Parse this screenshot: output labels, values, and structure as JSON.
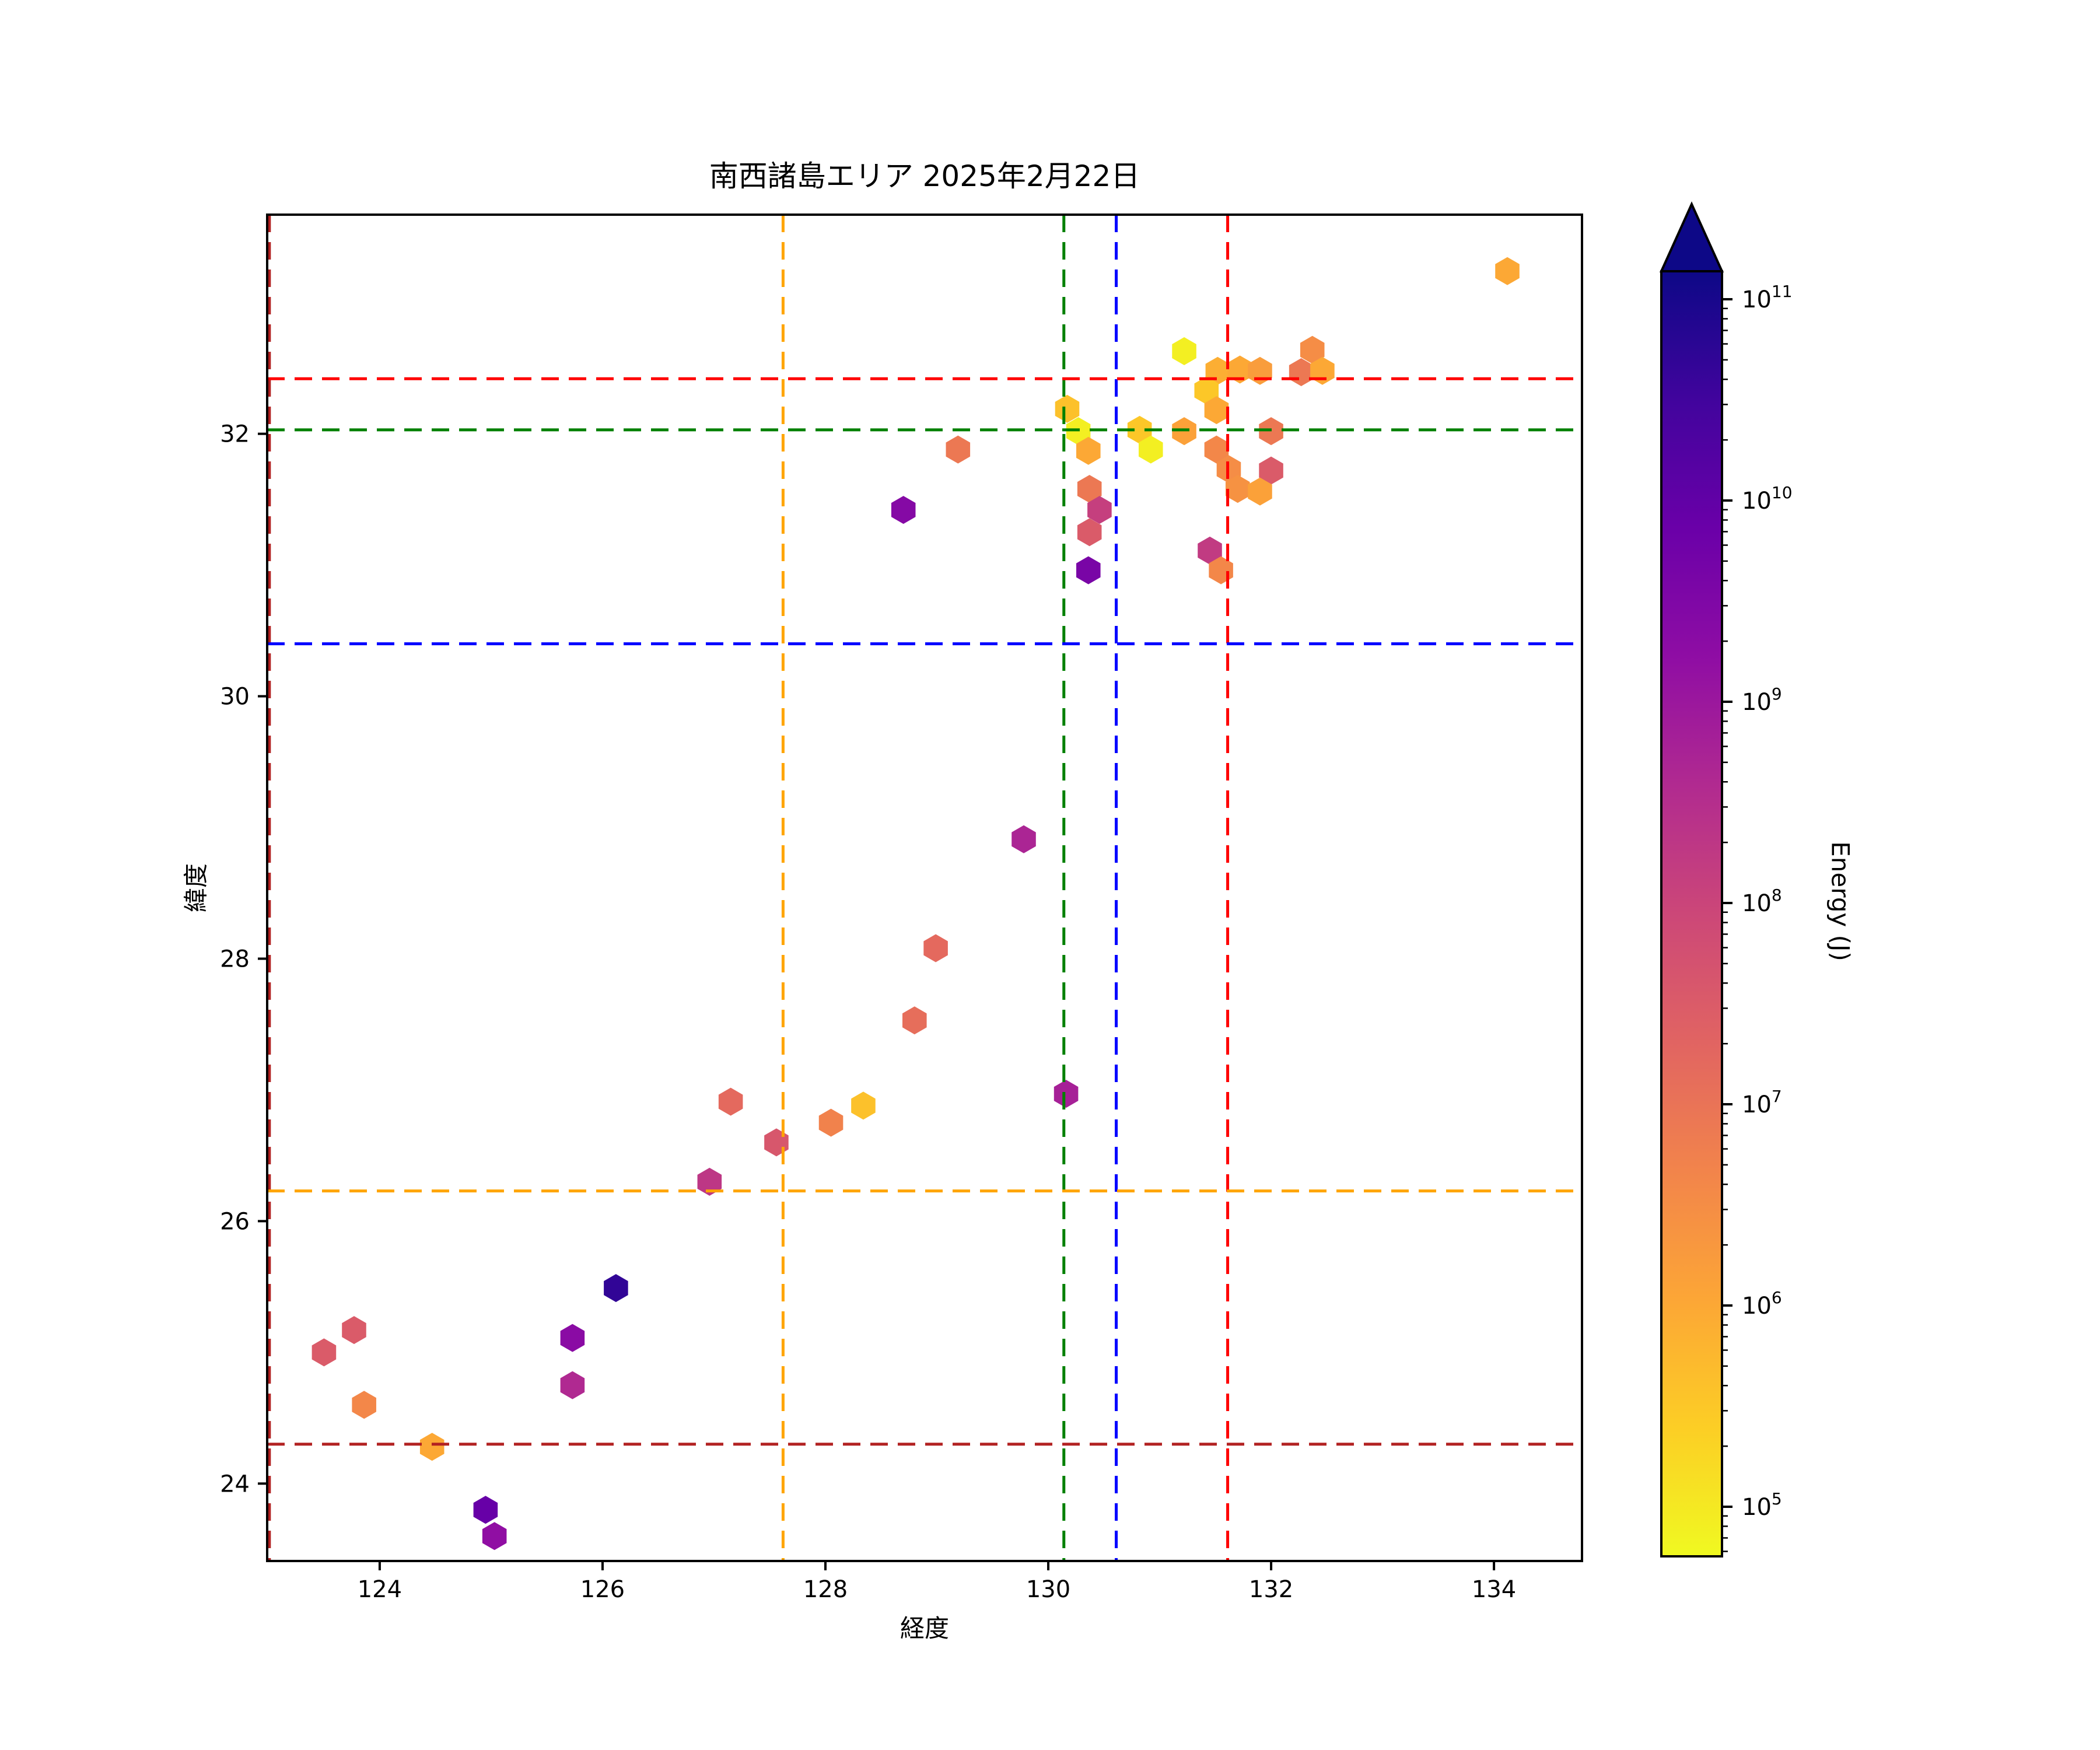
{
  "title": "南西諸島エリア 2025年2月22日",
  "axes": {
    "xlabel": "経度",
    "ylabel": "緯度",
    "xlim": [
      122.99,
      134.79
    ],
    "ylim": [
      23.41,
      33.67
    ],
    "xticks": [
      124,
      126,
      128,
      130,
      132,
      134
    ],
    "yticks": [
      24,
      26,
      28,
      30,
      32
    ]
  },
  "colorbar": {
    "label": "Energy (J)",
    "scale": "log",
    "colormap": "plasma_r",
    "extend": "max",
    "exp_min": 4.75,
    "exp_max": 11.14,
    "tick_exponents": [
      5,
      6,
      7,
      8,
      9,
      10,
      11
    ],
    "tick_mantissa_base": "10"
  },
  "reference_lines": {
    "vertical": [
      {
        "color": "#b22222",
        "lon": 123.01
      },
      {
        "color": "#ffa500",
        "lon": 127.62
      },
      {
        "color": "#008000",
        "lon": 130.14
      },
      {
        "color": "#0000ff",
        "lon": 130.61
      },
      {
        "color": "#ff0000",
        "lon": 131.61
      }
    ],
    "horizontal": [
      {
        "color": "#ff0000",
        "lat": 32.42
      },
      {
        "color": "#008000",
        "lat": 32.03
      },
      {
        "color": "#0000ff",
        "lat": 30.4
      },
      {
        "color": "#ffa500",
        "lat": 26.23
      },
      {
        "color": "#b22222",
        "lat": 24.3
      }
    ]
  },
  "chart_data": {
    "type": "scatter",
    "marker": "hexagon",
    "title": "南西諸島エリア 2025年2月22日",
    "xlabel": "経度",
    "ylabel": "緯度",
    "color_label": "Energy (J)",
    "color_scale": "log10",
    "xlim": [
      122.99,
      134.79
    ],
    "ylim": [
      23.41,
      33.67
    ],
    "points": [
      {
        "lon": 123.5,
        "lat": 25.0,
        "energy_j": 32000000.0
      },
      {
        "lon": 123.77,
        "lat": 25.17,
        "energy_j": 32000000.0
      },
      {
        "lon": 123.86,
        "lat": 24.6,
        "energy_j": 4000000.0
      },
      {
        "lon": 124.47,
        "lat": 24.28,
        "energy_j": 1000000.0
      },
      {
        "lon": 124.95,
        "lat": 23.8,
        "energy_j": 8000000000.0
      },
      {
        "lon": 125.03,
        "lat": 23.6,
        "energy_j": 1600000000.0
      },
      {
        "lon": 125.73,
        "lat": 25.11,
        "energy_j": 2000000000.0
      },
      {
        "lon": 125.73,
        "lat": 24.75,
        "energy_j": 400000000.0
      },
      {
        "lon": 126.12,
        "lat": 25.49,
        "energy_j": 50000000000.0
      },
      {
        "lon": 126.96,
        "lat": 26.3,
        "energy_j": 200000000.0
      },
      {
        "lon": 127.15,
        "lat": 26.91,
        "energy_j": 16000000.0
      },
      {
        "lon": 127.56,
        "lat": 26.6,
        "energy_j": 40000000.0
      },
      {
        "lon": 128.05,
        "lat": 26.75,
        "energy_j": 5000000.0
      },
      {
        "lon": 128.34,
        "lat": 26.88,
        "energy_j": 400000.0
      },
      {
        "lon": 128.8,
        "lat": 27.53,
        "energy_j": 13000000.0
      },
      {
        "lon": 128.99,
        "lat": 28.08,
        "energy_j": 16000000.0
      },
      {
        "lon": 129.78,
        "lat": 28.91,
        "energy_j": 500000000.0
      },
      {
        "lon": 130.16,
        "lat": 26.97,
        "energy_j": 630000000.0
      },
      {
        "lon": 128.7,
        "lat": 31.42,
        "energy_j": 2500000000.0
      },
      {
        "lon": 129.19,
        "lat": 31.88,
        "energy_j": 8000000.0
      },
      {
        "lon": 131.22,
        "lat": 32.63,
        "energy_j": 80000.0
      },
      {
        "lon": 131.52,
        "lat": 32.48,
        "energy_j": 800000.0
      },
      {
        "lon": 131.72,
        "lat": 32.49,
        "energy_j": 1000000.0
      },
      {
        "lon": 131.9,
        "lat": 32.48,
        "energy_j": 1600000.0
      },
      {
        "lon": 132.37,
        "lat": 32.64,
        "energy_j": 3200000.0
      },
      {
        "lon": 132.27,
        "lat": 32.47,
        "energy_j": 8000000.0
      },
      {
        "lon": 132.46,
        "lat": 32.48,
        "energy_j": 1000000.0
      },
      {
        "lon": 131.42,
        "lat": 32.33,
        "energy_j": 320000.0
      },
      {
        "lon": 131.51,
        "lat": 32.18,
        "energy_j": 1000000.0
      },
      {
        "lon": 130.17,
        "lat": 32.19,
        "energy_j": 400000.0
      },
      {
        "lon": 130.27,
        "lat": 32.02,
        "energy_j": 80000.0
      },
      {
        "lon": 130.36,
        "lat": 31.87,
        "energy_j": 1000000.0
      },
      {
        "lon": 130.82,
        "lat": 32.03,
        "energy_j": 320000.0
      },
      {
        "lon": 130.92,
        "lat": 31.88,
        "energy_j": 80000.0
      },
      {
        "lon": 131.22,
        "lat": 32.02,
        "energy_j": 1300000.0
      },
      {
        "lon": 132.0,
        "lat": 32.02,
        "energy_j": 8000000.0
      },
      {
        "lon": 131.51,
        "lat": 31.88,
        "energy_j": 4000000.0
      },
      {
        "lon": 131.62,
        "lat": 31.73,
        "energy_j": 3200000.0
      },
      {
        "lon": 132.0,
        "lat": 31.72,
        "energy_j": 32000000.0
      },
      {
        "lon": 131.7,
        "lat": 31.58,
        "energy_j": 2500000.0
      },
      {
        "lon": 131.9,
        "lat": 31.56,
        "energy_j": 1300000.0
      },
      {
        "lon": 130.37,
        "lat": 31.58,
        "energy_j": 8000000.0
      },
      {
        "lon": 130.37,
        "lat": 31.25,
        "energy_j": 32000000.0
      },
      {
        "lon": 130.46,
        "lat": 31.42,
        "energy_j": 130000000.0
      },
      {
        "lon": 131.45,
        "lat": 31.11,
        "energy_j": 160000000.0
      },
      {
        "lon": 131.55,
        "lat": 30.96,
        "energy_j": 4000000.0
      },
      {
        "lon": 130.36,
        "lat": 30.96,
        "energy_j": 4000000000.0
      },
      {
        "lon": 134.12,
        "lat": 33.24,
        "energy_j": 1000000.0
      }
    ]
  }
}
